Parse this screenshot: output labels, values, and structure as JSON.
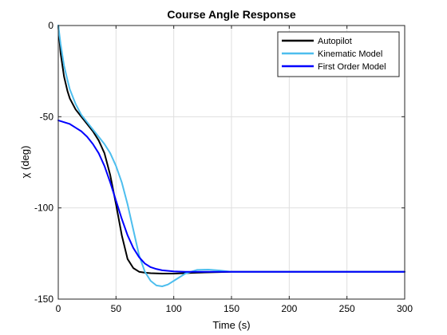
{
  "chart_data": {
    "type": "line",
    "title": "Course Angle Response",
    "xlabel": "Time (s)",
    "ylabel": "χ (deg)",
    "xlim": [
      0,
      300
    ],
    "ylim": [
      -150,
      0
    ],
    "xticks": [
      0,
      50,
      100,
      150,
      200,
      250,
      300
    ],
    "yticks": [
      0,
      -50,
      -100,
      -150
    ],
    "grid": true,
    "legend_position": "top-right",
    "series": [
      {
        "name": "Autopilot",
        "color": "#000000",
        "x": [
          0,
          2,
          5,
          8,
          10,
          15,
          20,
          25,
          30,
          35,
          40,
          45,
          50,
          55,
          60,
          65,
          70,
          75,
          80,
          90,
          100,
          120,
          150,
          200,
          250,
          300
        ],
        "y": [
          0,
          -15,
          -28,
          -36,
          -40,
          -46,
          -50,
          -54,
          -58,
          -63,
          -70,
          -82,
          -98,
          -115,
          -128,
          -133,
          -135,
          -135.5,
          -135.8,
          -136,
          -136,
          -135.5,
          -135,
          -135,
          -135,
          -135
        ]
      },
      {
        "name": "Kinematic Model",
        "color": "#4DBEEE",
        "x": [
          0,
          2,
          5,
          8,
          10,
          15,
          20,
          25,
          30,
          35,
          40,
          45,
          50,
          55,
          60,
          65,
          70,
          75,
          80,
          85,
          90,
          95,
          100,
          110,
          120,
          130,
          140,
          150,
          175,
          200,
          250,
          300
        ],
        "y": [
          0,
          -10,
          -22,
          -30,
          -35,
          -43,
          -49,
          -53,
          -57,
          -61,
          -65,
          -70,
          -77,
          -86,
          -98,
          -112,
          -126,
          -135,
          -140,
          -142.5,
          -143,
          -142,
          -140,
          -136,
          -134,
          -133.8,
          -134.3,
          -135,
          -135,
          -135,
          -135,
          -135
        ]
      },
      {
        "name": "First Order Model",
        "color": "#0000FF",
        "x": [
          0,
          5,
          10,
          15,
          20,
          25,
          30,
          35,
          40,
          45,
          50,
          55,
          60,
          65,
          70,
          75,
          80,
          85,
          90,
          100,
          110,
          120,
          150,
          200,
          250,
          300
        ],
        "y": [
          -52,
          -53,
          -54,
          -56,
          -58,
          -61,
          -65,
          -70,
          -77,
          -86,
          -96,
          -106,
          -115,
          -122,
          -127,
          -130.5,
          -132.5,
          -133.5,
          -134.2,
          -134.8,
          -135,
          -135,
          -135,
          -135,
          -135,
          -135
        ]
      }
    ]
  }
}
